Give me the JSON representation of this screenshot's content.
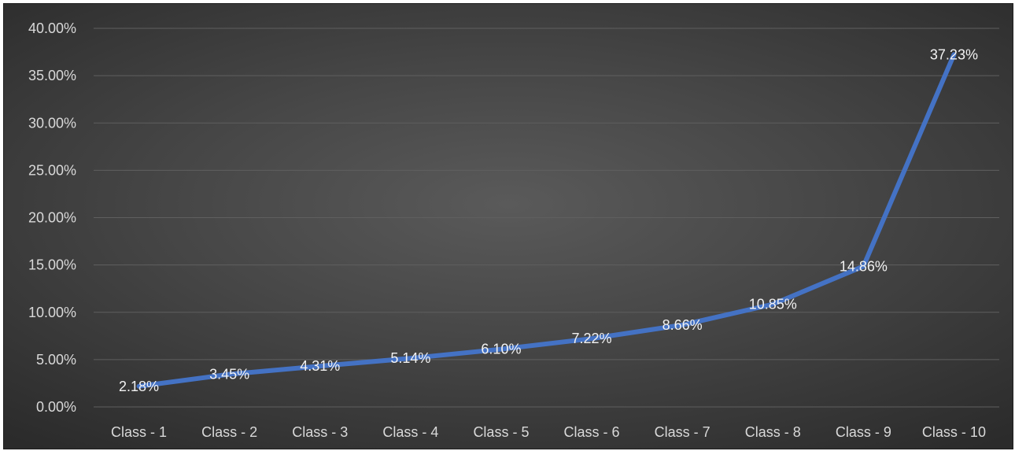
{
  "chart_data": {
    "type": "line",
    "title": "",
    "xlabel": "",
    "ylabel": "",
    "categories": [
      "Class - 1",
      "Class - 2",
      "Class - 3",
      "Class - 4",
      "Class - 5",
      "Class - 6",
      "Class - 7",
      "Class - 8",
      "Class - 9",
      "Class - 10"
    ],
    "series": [
      {
        "values": [
          2.18,
          3.45,
          4.31,
          5.14,
          6.1,
          7.22,
          8.66,
          10.85,
          14.86,
          37.23
        ],
        "labels": [
          "2.18%",
          "3.45%",
          "4.31%",
          "5.14%",
          "6.10%",
          "7.22%",
          "8.66%",
          "10.85%",
          "14.86%",
          "37.23%"
        ],
        "color": "#4472c4"
      }
    ],
    "ylim": [
      0,
      40
    ],
    "yticks": [
      0,
      5,
      10,
      15,
      20,
      25,
      30,
      35,
      40
    ],
    "ytick_labels": [
      "0.00%",
      "5.00%",
      "10.00%",
      "15.00%",
      "20.00%",
      "25.00%",
      "30.00%",
      "35.00%",
      "40.00%"
    ],
    "grid": true,
    "legend": "none",
    "gridline_color": "#5f5f5f",
    "background_color": "#404040"
  }
}
